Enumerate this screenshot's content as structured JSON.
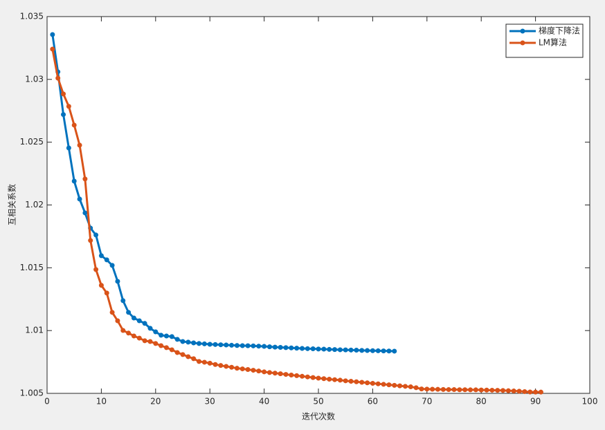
{
  "chart_data": {
    "type": "line",
    "xlabel": "迭代次数",
    "ylabel": "互相关系数",
    "x": [
      1,
      2,
      3,
      4,
      5,
      6,
      7,
      8,
      9,
      10,
      11,
      12,
      13,
      14,
      15,
      16,
      17,
      18,
      19,
      20,
      21,
      22,
      23,
      24,
      25,
      26,
      27,
      28,
      29,
      30,
      31,
      32,
      33,
      34,
      35,
      36,
      37,
      38,
      39,
      40,
      41,
      42,
      43,
      44,
      45,
      46,
      47,
      48,
      49,
      50,
      51,
      52,
      53,
      54,
      55,
      56,
      57,
      58,
      59,
      60,
      61,
      62,
      63,
      64,
      65,
      66,
      67,
      68,
      69,
      70,
      71,
      72,
      73,
      74,
      75,
      76,
      77,
      78,
      79,
      80,
      81,
      82,
      83,
      84,
      85,
      86,
      87,
      88,
      89,
      90,
      91
    ],
    "series": [
      {
        "name": "梯度下降法",
        "color": "#0072bd",
        "values": [
          1.03357,
          1.0306,
          1.0272,
          1.02454,
          1.0219,
          1.02047,
          1.01937,
          1.01816,
          1.01761,
          1.01596,
          1.01563,
          1.01519,
          1.01392,
          1.01238,
          1.01145,
          1.011,
          1.01078,
          1.01057,
          1.01018,
          1.0099,
          1.00963,
          1.00957,
          1.00952,
          1.0093,
          1.00913,
          1.00908,
          1.00902,
          1.00897,
          1.00894,
          1.00891,
          1.00889,
          1.00887,
          1.00885,
          1.00883,
          1.00881,
          1.0088,
          1.00879,
          1.00878,
          1.00876,
          1.00874,
          1.00871,
          1.00868,
          1.00866,
          1.00864,
          1.00862,
          1.0086,
          1.00858,
          1.00856,
          1.00855,
          1.00853,
          1.00852,
          1.0085,
          1.00849,
          1.00847,
          1.00846,
          1.00845,
          1.00844,
          1.00842,
          1.00841,
          1.0084,
          1.00839,
          1.00838,
          1.00837,
          1.00836,
          null,
          null,
          null,
          null,
          null,
          null,
          null,
          null,
          null,
          null,
          null,
          null,
          null,
          null,
          null,
          null,
          null,
          null,
          null,
          null,
          null,
          null,
          null,
          null,
          null,
          null,
          null
        ]
      },
      {
        "name": "LM算法",
        "color": "#d95319",
        "values": [
          1.03241,
          1.0301,
          1.02884,
          1.02785,
          1.02636,
          1.02476,
          1.02207,
          1.01717,
          1.01486,
          1.0136,
          1.01299,
          1.01145,
          1.01078,
          1.01001,
          1.0098,
          1.00957,
          1.0094,
          1.00919,
          1.00913,
          1.00897,
          1.0088,
          1.00864,
          1.00847,
          1.00825,
          1.00809,
          1.00792,
          1.00776,
          1.00754,
          1.00748,
          1.0074,
          1.0073,
          1.00722,
          1.00715,
          1.00708,
          1.007,
          1.00695,
          1.0069,
          1.00684,
          1.00678,
          1.00671,
          1.00666,
          1.00661,
          1.00656,
          1.00651,
          1.00646,
          1.00641,
          1.00636,
          1.00631,
          1.00626,
          1.00621,
          1.00617,
          1.00613,
          1.00609,
          1.00605,
          1.006,
          1.00596,
          1.00592,
          1.00588,
          1.00584,
          1.0058,
          1.00576,
          1.00572,
          1.00568,
          1.00564,
          1.0056,
          1.00556,
          1.00552,
          1.00545,
          1.00535,
          1.00534,
          1.00533,
          1.00532,
          1.00531,
          1.0053,
          1.0053,
          1.00529,
          1.00529,
          1.00528,
          1.00528,
          1.00527,
          1.00526,
          1.00525,
          1.00524,
          1.00523,
          1.00521,
          1.00519,
          1.00517,
          1.00514,
          1.00511,
          1.0051,
          1.0051
        ]
      }
    ],
    "xlim": [
      0,
      100
    ],
    "xticks": [
      0,
      10,
      20,
      30,
      40,
      50,
      60,
      70,
      80,
      90,
      100
    ],
    "ylim": [
      1.005,
      1.035
    ],
    "yticks": [
      1.005,
      1.01,
      1.015,
      1.02,
      1.025,
      1.03,
      1.035
    ],
    "grid": false,
    "legend": "northeast"
  }
}
